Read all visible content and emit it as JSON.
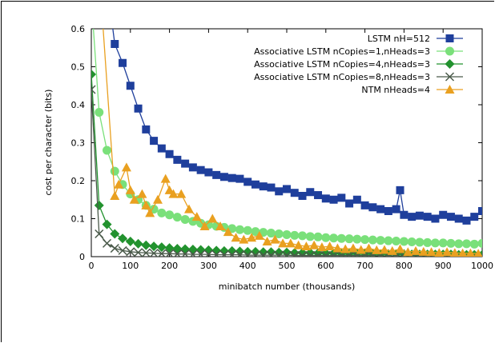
{
  "chart_data": {
    "type": "line",
    "xlabel": "minibatch number (thousands)",
    "ylabel": "cost per character (bits)",
    "xlim": [
      0,
      1000
    ],
    "ylim": [
      0,
      0.6
    ],
    "xticks": [
      0,
      100,
      200,
      300,
      400,
      500,
      600,
      700,
      800,
      900,
      1000
    ],
    "yticks": [
      0,
      0.1,
      0.2,
      0.3,
      0.4,
      0.5,
      0.6
    ],
    "ytick_labels": [
      "0",
      "0.1",
      "0.2",
      "0.3",
      "0.4",
      "0.5",
      "0.6"
    ],
    "grid": false,
    "legend_position": "top-right",
    "series": [
      {
        "name": "LSTM nH=512",
        "color": "#1f3f9c",
        "marker": "square",
        "x": [
          40,
          60,
          80,
          100,
          120,
          140,
          160,
          180,
          200,
          220,
          240,
          260,
          280,
          300,
          320,
          340,
          360,
          380,
          400,
          420,
          440,
          460,
          480,
          500,
          520,
          540,
          560,
          580,
          600,
          620,
          640,
          660,
          680,
          700,
          720,
          740,
          760,
          780,
          790,
          800,
          820,
          840,
          860,
          880,
          900,
          920,
          940,
          960,
          980,
          1000
        ],
        "values": [
          0.72,
          0.56,
          0.51,
          0.45,
          0.39,
          0.335,
          0.305,
          0.285,
          0.27,
          0.255,
          0.245,
          0.235,
          0.228,
          0.222,
          0.215,
          0.21,
          0.207,
          0.205,
          0.197,
          0.19,
          0.185,
          0.182,
          0.172,
          0.178,
          0.168,
          0.16,
          0.17,
          0.162,
          0.153,
          0.15,
          0.155,
          0.14,
          0.15,
          0.135,
          0.13,
          0.125,
          0.12,
          0.125,
          0.175,
          0.11,
          0.105,
          0.108,
          0.105,
          0.1,
          0.11,
          0.105,
          0.1,
          0.095,
          0.105,
          0.12
        ]
      },
      {
        "name": "Associative LSTM nCopies=1,nHeads=3",
        "color": "#7ae07a",
        "marker": "circle",
        "x": [
          0,
          20,
          40,
          60,
          80,
          100,
          120,
          140,
          160,
          180,
          200,
          220,
          240,
          260,
          280,
          300,
          320,
          340,
          360,
          380,
          400,
          420,
          440,
          460,
          480,
          500,
          520,
          540,
          560,
          580,
          600,
          620,
          640,
          660,
          680,
          700,
          720,
          740,
          760,
          780,
          800,
          820,
          840,
          860,
          880,
          900,
          920,
          940,
          960,
          980,
          1000
        ],
        "values": [
          0.68,
          0.38,
          0.28,
          0.225,
          0.19,
          0.165,
          0.15,
          0.135,
          0.125,
          0.115,
          0.11,
          0.104,
          0.098,
          0.093,
          0.088,
          0.084,
          0.08,
          0.077,
          0.074,
          0.071,
          0.069,
          0.066,
          0.064,
          0.062,
          0.06,
          0.058,
          0.056,
          0.055,
          0.053,
          0.052,
          0.05,
          0.049,
          0.048,
          0.047,
          0.046,
          0.045,
          0.044,
          0.043,
          0.042,
          0.041,
          0.04,
          0.039,
          0.038,
          0.037,
          0.036,
          0.036,
          0.035,
          0.034,
          0.034,
          0.033,
          0.035
        ]
      },
      {
        "name": "Associative LSTM nCopies=4,nHeads=3",
        "color": "#22922e",
        "marker": "diamond",
        "x": [
          0,
          20,
          40,
          60,
          80,
          100,
          120,
          140,
          160,
          180,
          200,
          220,
          240,
          260,
          280,
          300,
          320,
          340,
          360,
          380,
          400,
          420,
          440,
          460,
          480,
          500,
          520,
          540,
          560,
          580,
          600,
          620,
          640,
          660,
          680,
          700,
          720,
          740,
          760,
          780,
          800,
          820,
          840,
          860,
          880,
          900,
          920,
          940,
          960,
          980,
          1000
        ],
        "values": [
          0.48,
          0.135,
          0.085,
          0.06,
          0.048,
          0.04,
          0.034,
          0.03,
          0.027,
          0.025,
          0.023,
          0.021,
          0.02,
          0.019,
          0.018,
          0.017,
          0.016,
          0.015,
          0.015,
          0.014,
          0.013,
          0.013,
          0.012,
          0.012,
          0.011,
          0.011,
          0.01,
          0.01,
          0.01,
          0.009,
          0.009,
          0.009,
          0.008,
          0.008,
          0.008,
          0.008,
          0.007,
          0.007,
          0.007,
          0.007,
          0.007,
          0.006,
          0.006,
          0.006,
          0.006,
          0.006,
          0.006,
          0.005,
          0.005,
          0.005,
          0.005
        ]
      },
      {
        "name": "Associative LSTM nCopies=8,nHeads=3",
        "color": "#4a5a4a",
        "marker": "cross",
        "x": [
          0,
          20,
          40,
          60,
          80,
          100,
          120,
          140,
          160,
          180,
          200,
          220,
          240,
          260,
          280,
          300,
          320,
          340,
          360,
          380,
          400,
          420,
          440,
          460,
          480,
          500,
          520,
          540,
          560,
          580,
          600,
          620,
          640,
          660,
          680,
          700,
          720,
          740,
          760,
          780,
          800,
          820,
          840,
          860,
          880,
          900,
          920,
          940,
          960,
          980,
          1000
        ],
        "values": [
          0.44,
          0.06,
          0.035,
          0.022,
          0.016,
          0.013,
          0.011,
          0.01,
          0.009,
          0.008,
          0.008,
          0.007,
          0.007,
          0.006,
          0.006,
          0.006,
          0.005,
          0.005,
          0.005,
          0.005,
          0.004,
          0.004,
          0.004,
          0.004,
          0.004,
          0.004,
          0.003,
          0.003,
          0.003,
          0.003,
          0.003,
          0.003,
          0.003,
          0.003,
          0.003,
          0.003,
          0.003,
          0.002,
          0.002,
          0.002,
          0.002,
          0.002,
          0.002,
          0.002,
          0.002,
          0.002,
          0.002,
          0.002,
          0.002,
          0.002,
          0.002
        ]
      },
      {
        "name": "NTM nHeads=4",
        "color": "#e9a020",
        "marker": "triangle",
        "x": [
          10,
          60,
          70,
          90,
          100,
          110,
          130,
          140,
          150,
          170,
          190,
          200,
          210,
          230,
          250,
          270,
          290,
          310,
          330,
          350,
          370,
          390,
          410,
          430,
          450,
          470,
          490,
          510,
          530,
          550,
          570,
          590,
          610,
          630,
          650,
          670,
          690,
          710,
          730,
          750,
          770,
          790,
          810,
          830,
          850,
          870,
          890,
          910,
          930,
          950,
          970,
          990
        ],
        "values": [
          0.9,
          0.16,
          0.19,
          0.235,
          0.175,
          0.15,
          0.165,
          0.135,
          0.115,
          0.15,
          0.205,
          0.175,
          0.165,
          0.165,
          0.125,
          0.105,
          0.08,
          0.1,
          0.08,
          0.065,
          0.05,
          0.045,
          0.05,
          0.055,
          0.04,
          0.045,
          0.035,
          0.035,
          0.03,
          0.027,
          0.03,
          0.025,
          0.027,
          0.022,
          0.02,
          0.022,
          0.018,
          0.022,
          0.017,
          0.018,
          0.015,
          0.02,
          0.012,
          0.015,
          0.013,
          0.012,
          0.01,
          0.012,
          0.01,
          0.009,
          0.009,
          0.008
        ]
      }
    ]
  }
}
